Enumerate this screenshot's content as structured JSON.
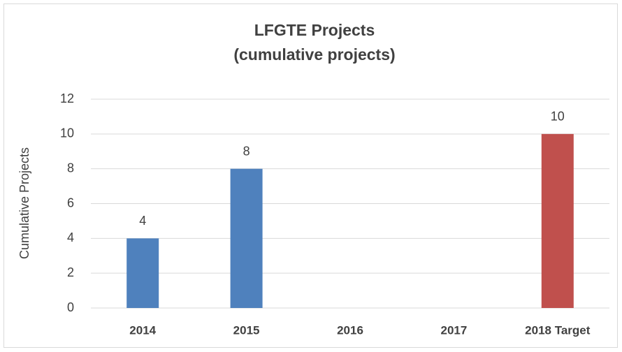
{
  "chart_data": {
    "type": "bar",
    "title": "LFGTE Projects",
    "subtitle": "(cumulative projects)",
    "y_label": "Cumulative Projects",
    "categories": [
      "2014",
      "2015",
      "2016",
      "2017",
      "2018 Target"
    ],
    "values": [
      4,
      8,
      null,
      null,
      10
    ],
    "colors": [
      "#4f81bd",
      "#4f81bd",
      "#4f81bd",
      "#4f81bd",
      "#c0504d"
    ],
    "ylim": [
      0,
      12
    ],
    "yticks": [
      0,
      2,
      4,
      6,
      8,
      10,
      12
    ],
    "grid": true
  }
}
